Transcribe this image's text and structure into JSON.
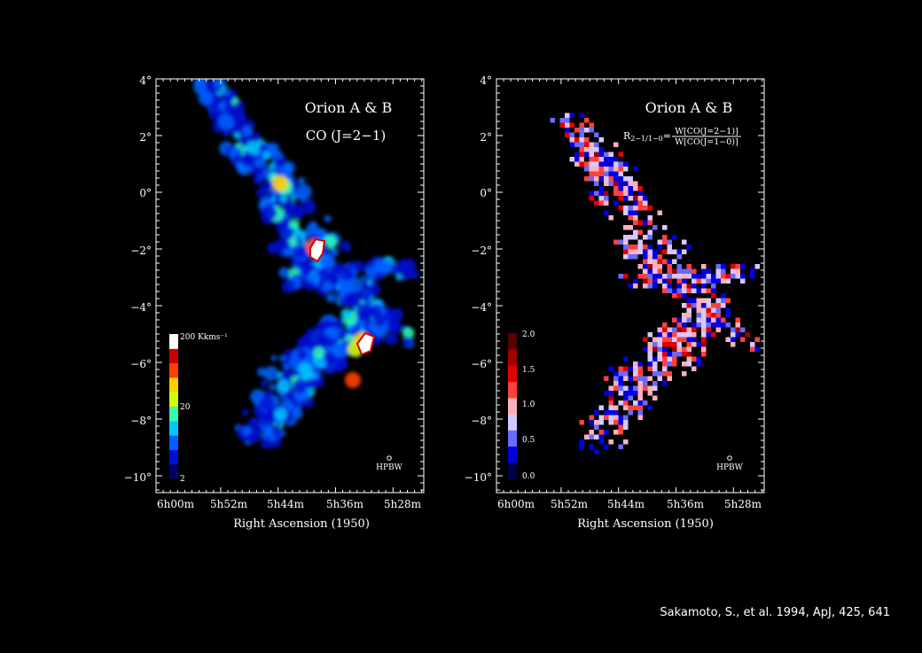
{
  "credit": "Sakamoto, S., et al. 1994, ApJ, 425, 641",
  "chart_data": [
    {
      "type": "heatmap",
      "title": "Orion A & B",
      "subtitle": "CO (J=2−1)",
      "xlabel": "Right Ascension (1950)",
      "ylabel": "",
      "x_ticks": [
        "6h00m",
        "5h52m",
        "5h44m",
        "5h36m",
        "5h28m"
      ],
      "y_ticks": [
        "4°",
        "2°",
        "0°",
        "−2°",
        "−4°",
        "−6°",
        "−8°",
        "−10°"
      ],
      "ylim": [
        -10.2,
        3.9
      ],
      "colorbar": {
        "labels": [
          "200 Kkms⁻¹",
          "20",
          "2"
        ],
        "scale": "log",
        "range": [
          2,
          200
        ],
        "colors": [
          "#000064",
          "#0010d0",
          "#0060ff",
          "#00c8ff",
          "#30ffb0",
          "#d0ff00",
          "#ffd000",
          "#ff4000",
          "#c80000",
          "#ffffff"
        ]
      },
      "beam_label": "HPBW"
    },
    {
      "type": "heatmap",
      "title": "Orion A & B",
      "subtitle": "R2−1/1−0 = W[CO(J=2−1)] / W[CO(J=1−0)]",
      "formula": {
        "lhs": "R",
        "sub": "2−1/1−0",
        "eq": "=",
        "num": "W[CO(J=2−1)]",
        "den": "W[CO(J=1−0)]"
      },
      "xlabel": "Right Ascension (1950)",
      "ylabel": "",
      "x_ticks": [
        "6h00m",
        "5h52m",
        "5h44m",
        "5h36m",
        "5h28m"
      ],
      "y_ticks": [
        "4°",
        "2°",
        "0°",
        "−2°",
        "−4°",
        "−6°",
        "−8°",
        "−10°"
      ],
      "ylim": [
        -10.2,
        3.9
      ],
      "colorbar": {
        "labels": [
          "2.0",
          "1.5",
          "1.0",
          "0.5",
          "0.0"
        ],
        "range": [
          0,
          2
        ],
        "colors": [
          "#00004a",
          "#0000e0",
          "#6a6aff",
          "#d8c8ff",
          "#ffb0b8",
          "#ff4040",
          "#e00000",
          "#a00000",
          "#5a0000"
        ]
      },
      "beam_label": "HPBW"
    }
  ]
}
